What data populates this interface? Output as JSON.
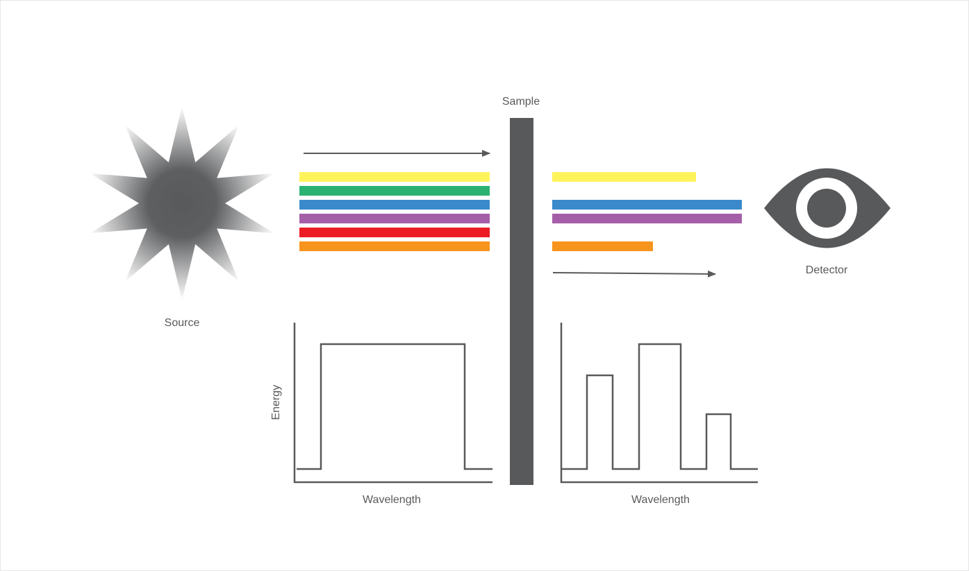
{
  "source": {
    "label": "Source"
  },
  "sample": {
    "label": "Sample"
  },
  "detector": {
    "label": "Detector"
  },
  "input_spectrum": {
    "y_label": "Energy",
    "x_label": "Wavelength"
  },
  "output_spectrum": {
    "x_label": "Wavelength"
  }
}
